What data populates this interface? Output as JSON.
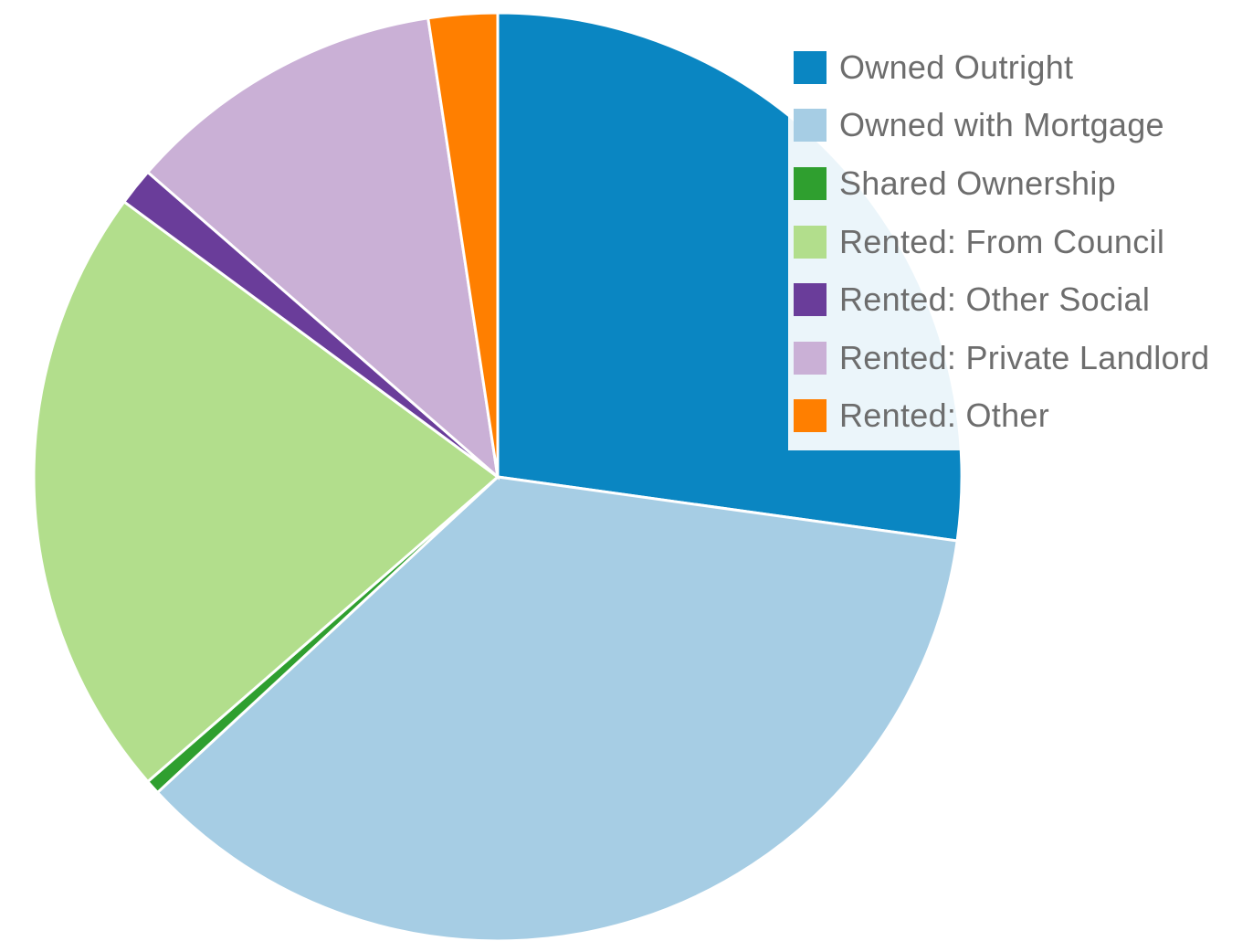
{
  "chart_data": {
    "type": "pie",
    "start_angle_deg": 0,
    "direction": "clockwise",
    "slices": [
      {
        "label": "Owned Outright",
        "value": 27.2,
        "color": "#0a86c2"
      },
      {
        "label": "Owned with Mortgage",
        "value": 35.9,
        "color": "#a6cde4"
      },
      {
        "label": "Shared Ownership",
        "value": 0.5,
        "color": "#2f9f2f"
      },
      {
        "label": "Rented: From Council",
        "value": 21.5,
        "color": "#b2de8c"
      },
      {
        "label": "Rented: Other Social",
        "value": 1.3,
        "color": "#6a3d9a"
      },
      {
        "label": "Rented: Private Landlord",
        "value": 11.2,
        "color": "#cab0d6"
      },
      {
        "label": "Rented: Other",
        "value": 2.4,
        "color": "#ff7f00"
      }
    ],
    "legend_position": "top-right"
  }
}
